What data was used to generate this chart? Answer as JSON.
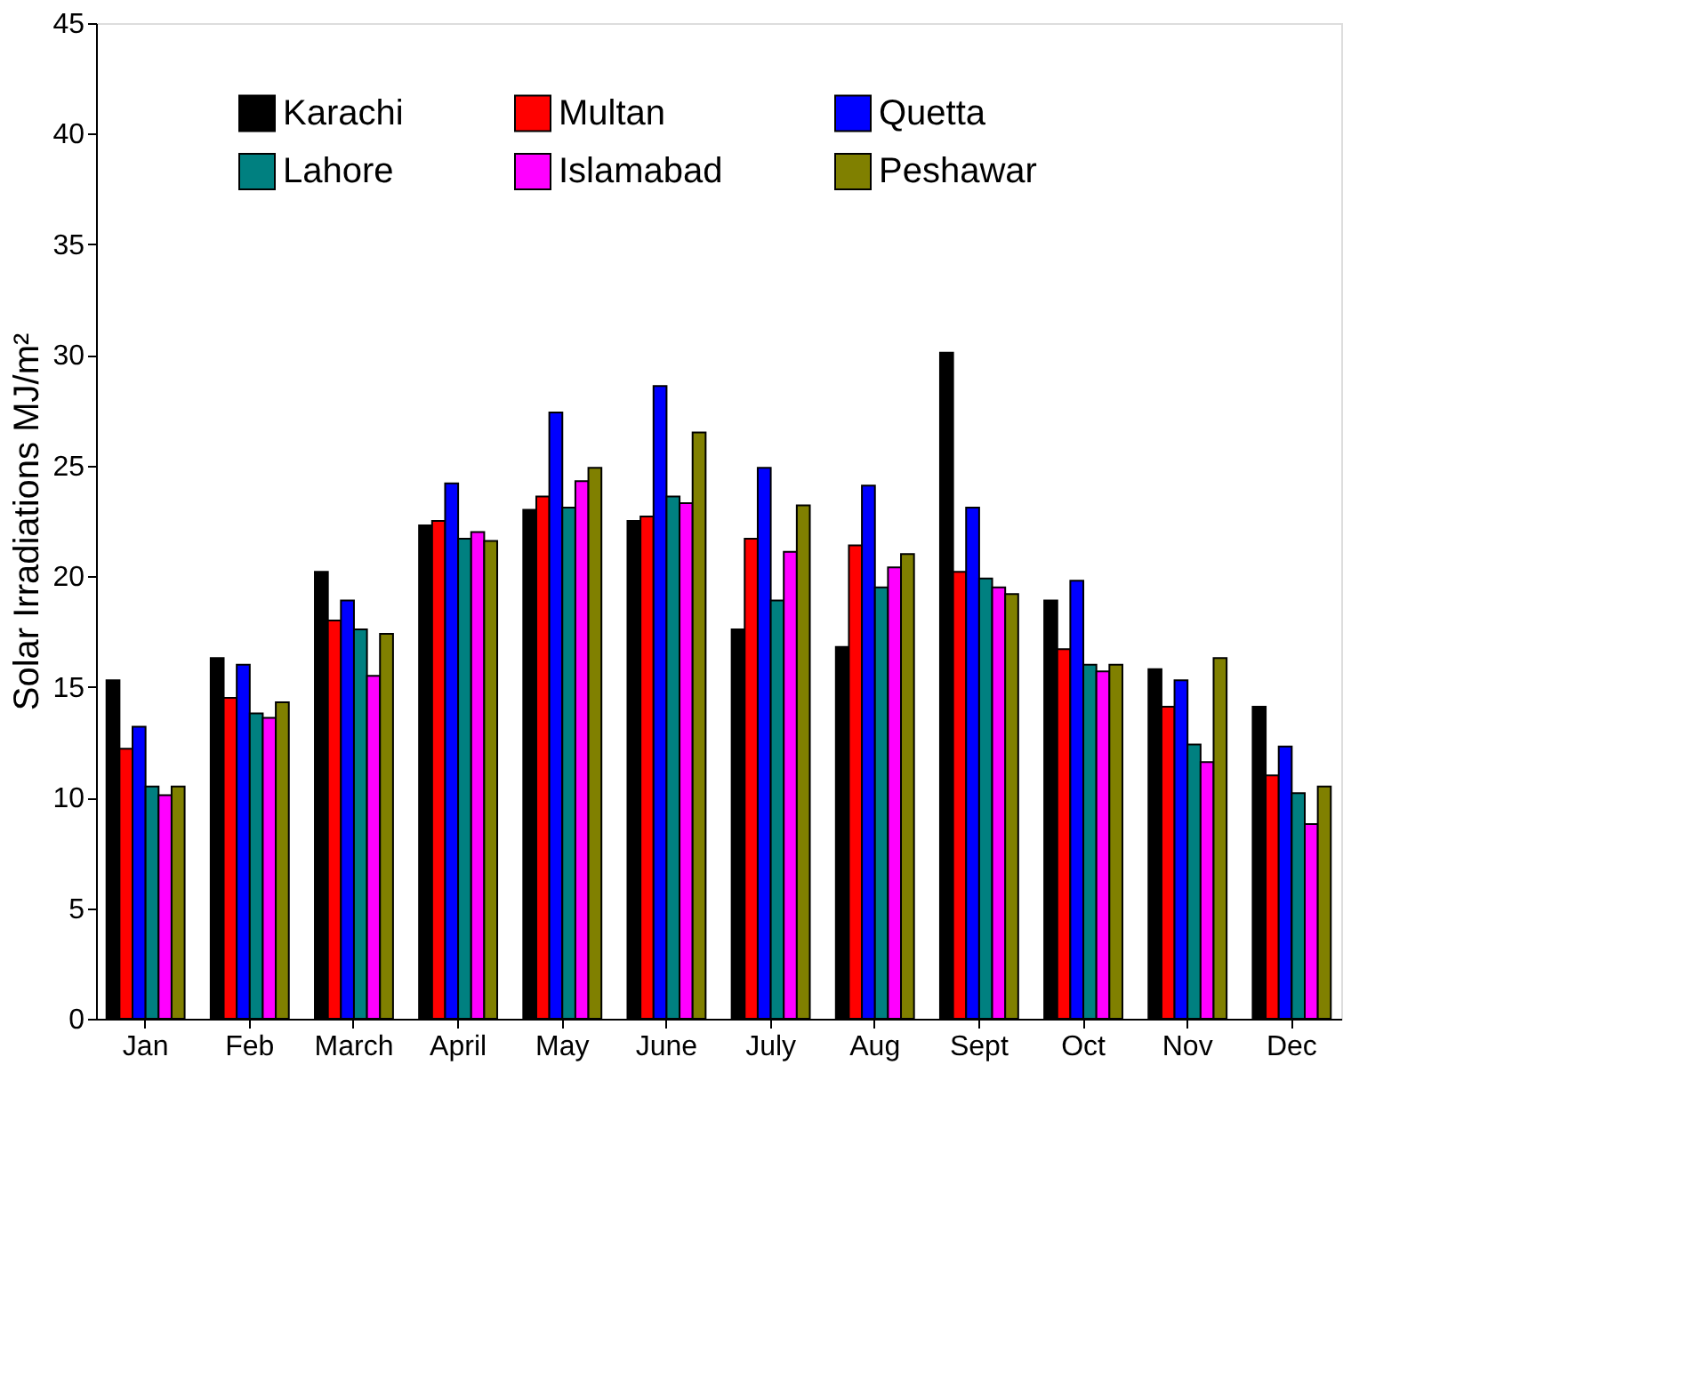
{
  "chart_data": {
    "type": "bar",
    "ylabel": "Solar Irradiations MJ/m²",
    "categories": [
      "Jan",
      "Feb",
      "March",
      "April",
      "May",
      "June",
      "July",
      "Aug",
      "Sept",
      "Oct",
      "Nov",
      "Dec"
    ],
    "series": [
      {
        "name": "Karachi",
        "color": "#000000",
        "values": [
          15.3,
          16.3,
          20.2,
          22.3,
          23.0,
          22.5,
          17.6,
          16.8,
          30.1,
          18.9,
          15.8,
          14.1
        ]
      },
      {
        "name": "Multan",
        "color": "#ff0000",
        "values": [
          12.2,
          14.5,
          18.0,
          22.5,
          23.6,
          22.7,
          21.7,
          21.4,
          20.2,
          16.7,
          14.1,
          11.0
        ]
      },
      {
        "name": "Quetta",
        "color": "#0000ff",
        "values": [
          13.2,
          16.0,
          18.9,
          24.2,
          27.4,
          28.6,
          24.9,
          24.1,
          23.1,
          19.8,
          15.3,
          12.3
        ]
      },
      {
        "name": "Lahore",
        "color": "#008080",
        "values": [
          10.5,
          13.8,
          17.6,
          21.7,
          23.1,
          23.6,
          18.9,
          19.5,
          19.9,
          16.0,
          12.4,
          10.2
        ]
      },
      {
        "name": "Islamabad",
        "color": "#ff00ff",
        "values": [
          10.1,
          13.6,
          15.5,
          22.0,
          24.3,
          23.3,
          21.1,
          20.4,
          19.5,
          15.7,
          11.6,
          8.8
        ]
      },
      {
        "name": "Peshawar",
        "color": "#808000",
        "values": [
          10.5,
          14.3,
          17.4,
          21.6,
          24.9,
          26.5,
          23.2,
          21.0,
          19.2,
          16.0,
          16.3,
          10.5
        ]
      }
    ],
    "ylim": [
      0,
      45
    ],
    "yticks": [
      0,
      5,
      10,
      15,
      20,
      25,
      30,
      35,
      40,
      45
    ],
    "grid": false,
    "legend": "top"
  }
}
